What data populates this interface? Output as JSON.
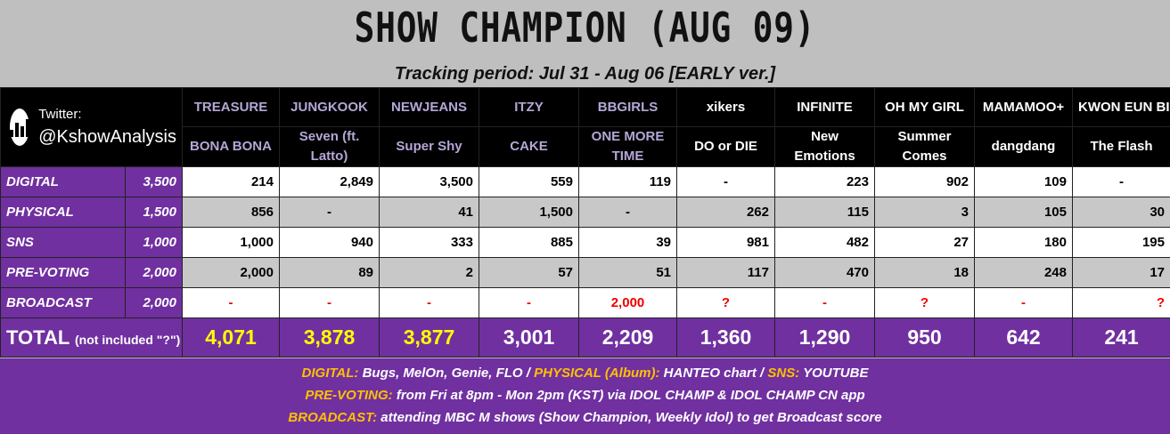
{
  "header": {
    "title": "SHOW CHAMPION (AUG 09)",
    "subtitle": "Tracking period: Jul 31 - Aug 06 [EARLY ver.]"
  },
  "brand": {
    "twitter_label": "Twitter:",
    "handle": "@KshowAnalysis",
    "icon": "bar-chart-icon"
  },
  "artists": [
    {
      "artist": "TREASURE",
      "song": "BONA BONA"
    },
    {
      "artist": "JUNGKOOK",
      "song": "Seven (ft. Latto)"
    },
    {
      "artist": "NEWJEANS",
      "song": "Super Shy"
    },
    {
      "artist": "ITZY",
      "song": "CAKE"
    },
    {
      "artist": "BBGIRLS",
      "song": "ONE MORE TIME"
    },
    {
      "artist": "xikers",
      "song": "DO or DIE"
    },
    {
      "artist": "INFINITE",
      "song": "New Emotions"
    },
    {
      "artist": "OH MY GIRL",
      "song": "Summer Comes"
    },
    {
      "artist": "MAMAMOO+",
      "song": "dangdang"
    },
    {
      "artist": "KWON EUN BI",
      "song": "The Flash"
    }
  ],
  "categories": [
    {
      "name": "DIGITAL",
      "max": "3,500",
      "values": [
        "214",
        "2,849",
        "3,500",
        "559",
        "119",
        "-",
        "223",
        "902",
        "109",
        "-"
      ]
    },
    {
      "name": "PHYSICAL",
      "max": "1,500",
      "values": [
        "856",
        "-",
        "41",
        "1,500",
        "-",
        "262",
        "115",
        "3",
        "105",
        "30"
      ]
    },
    {
      "name": "SNS",
      "max": "1,000",
      "values": [
        "1,000",
        "940",
        "333",
        "885",
        "39",
        "981",
        "482",
        "27",
        "180",
        "195"
      ]
    },
    {
      "name": "PRE-VOTING",
      "max": "2,000",
      "values": [
        "2,000",
        "89",
        "2",
        "57",
        "51",
        "117",
        "470",
        "18",
        "248",
        "17"
      ]
    },
    {
      "name": "BROADCAST",
      "max": "2,000",
      "values": [
        "-",
        "-",
        "-",
        "-",
        "2,000",
        "?",
        "-",
        "?",
        "-",
        "?"
      ]
    }
  ],
  "total": {
    "label": "TOTAL",
    "note": "(not included \"?\")",
    "values": [
      "4,071",
      "3,878",
      "3,877",
      "3,001",
      "2,209",
      "1,360",
      "1,290",
      "950",
      "642",
      "241"
    ]
  },
  "footer": {
    "line1": {
      "k1": "DIGITAL:",
      "t1": "Bugs, MelOn, Genie, FLO /",
      "k2": "PHYSICAL (Album):",
      "t2": "HANTEO chart /",
      "k3": "SNS:",
      "t3": "YOUTUBE"
    },
    "line2": {
      "k1": "PRE-VOTING:",
      "t1": "from Fri at 8pm - Mon 2pm (KST) via IDOL CHAMP & IDOL CHAMP CN app"
    },
    "line3": {
      "k1": "BROADCAST:",
      "t1": "attending MBC M shows (Show Champion, Weekly Idol) to get Broadcast score"
    }
  },
  "colors": {
    "purple": "#7030a0",
    "lavender_text": "#b4a7d6",
    "highlight_yellow": "#ffff00",
    "key_orange": "#ffc000",
    "alert_red": "#ee0000"
  }
}
